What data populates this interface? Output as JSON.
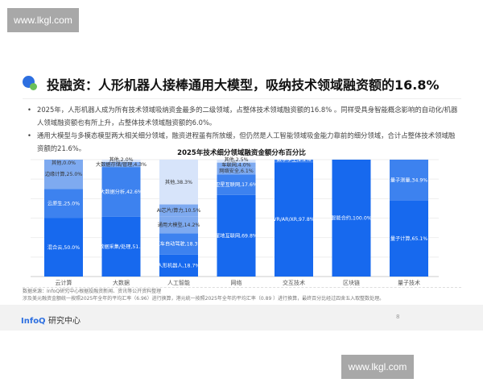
{
  "watermark": "www.lkgl.com",
  "title": "投融资：人形机器人接棒通用大模型，吸纳技术领域融资额的16.8%",
  "bullets": [
    "2025年，人形机器人成为所有技术领域吸纳资金最多的二级领域，占整体技术领域融资额的16.8% 。同样受具身智能概念影响的自动化/机器人领域融资额也有所上升，占整体技术领域融资额的6.0%。",
    "通用大模型与多模态模型两大相关细分领域，融资进程虽有所放缓，但仍然是人工智能领域吸金能力靠前的细分领域，合计占整体技术领域融资额的21.6%。"
  ],
  "chart_data": {
    "type": "bar",
    "stacked": true,
    "title": "2025年技术细分领域融资金额分布百分比",
    "ylim": [
      0,
      100
    ],
    "grid": true,
    "colors": [
      "#1769ee",
      "#3d82ef",
      "#7eaaf0",
      "#d7e4fa"
    ],
    "categories": [
      "云计算",
      "大数据",
      "人工智能",
      "网络",
      "交互技术",
      "区块链",
      "量子技术"
    ],
    "stacks": [
      [
        {
          "label": "混合云",
          "value": 50.0
        },
        {
          "label": "云原生",
          "value": 25.0
        },
        {
          "label": "边缘计算",
          "value": 25.0
        },
        {
          "label": "其他",
          "value": 0.0
        }
      ],
      [
        {
          "label": "大数据采集/处理",
          "value": 51.1
        },
        {
          "label": "大数据分析",
          "value": 42.6
        },
        {
          "label": "大数据存储/管理",
          "value": 4.3
        },
        {
          "label": "其他",
          "value": 2.0
        }
      ],
      [
        {
          "label": "人形机器人",
          "value": 18.7
        },
        {
          "label": "汽车自动驾驶",
          "value": 18.3
        },
        {
          "label": "通用大模型",
          "value": 14.2
        },
        {
          "label": "AI芯片/算力",
          "value": 10.5
        },
        {
          "label": "其他",
          "value": 38.3
        }
      ],
      [
        {
          "label": "星地互联网",
          "value": 69.8
        },
        {
          "label": "卫星互联网",
          "value": 17.6
        },
        {
          "label": "网络安全",
          "value": 6.1
        },
        {
          "label": "车联网",
          "value": 4.0
        },
        {
          "label": "其他",
          "value": 2.5
        }
      ],
      [
        {
          "label": "VR/AR/XR",
          "value": 97.8
        },
        {
          "label": "数字孪生",
          "value": 2.2
        }
      ],
      [
        {
          "label": "智能合约",
          "value": 100.0
        }
      ],
      [
        {
          "label": "量子计算",
          "value": 65.1
        },
        {
          "label": "量子测量",
          "value": 34.9
        }
      ]
    ]
  },
  "source": [
    "数据来源：InfoQ研究中心根据投融资新闻、资讯等公开资料整理",
    "涉及美元融资金额统一按照2025年全年的平均汇率（6.96）进行换算，港元统一按照2025年全年的平均汇率（0.89 ）进行换算，最终百分比经过四舍五入取整数处理。"
  ],
  "footer": {
    "brand_a": "InfoQ",
    "brand_b": "研究中心",
    "page": "8"
  }
}
